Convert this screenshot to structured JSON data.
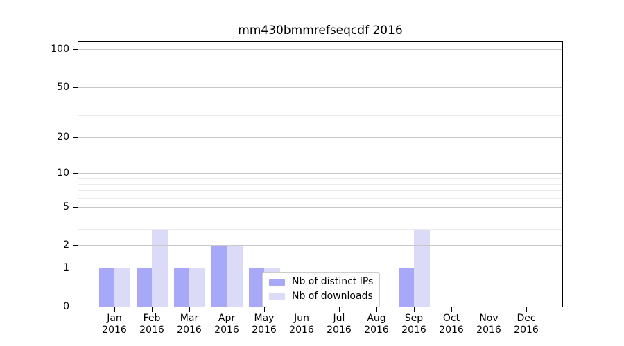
{
  "chart_data": {
    "type": "bar",
    "title": "mm430bmmrefseqcdf 2016",
    "x": {
      "categories": [
        {
          "month": "Jan",
          "year": "2016"
        },
        {
          "month": "Feb",
          "year": "2016"
        },
        {
          "month": "Mar",
          "year": "2016"
        },
        {
          "month": "Apr",
          "year": "2016"
        },
        {
          "month": "May",
          "year": "2016"
        },
        {
          "month": "Jun",
          "year": "2016"
        },
        {
          "month": "Jul",
          "year": "2016"
        },
        {
          "month": "Aug",
          "year": "2016"
        },
        {
          "month": "Sep",
          "year": "2016"
        },
        {
          "month": "Oct",
          "year": "2016"
        },
        {
          "month": "Nov",
          "year": "2016"
        },
        {
          "month": "Dec",
          "year": "2016"
        }
      ]
    },
    "y_axis": {
      "scale": "log1p",
      "max": 100,
      "ticks": [
        0,
        1,
        2,
        5,
        10,
        20,
        50,
        100
      ],
      "minor_ticks": [
        3,
        4,
        6,
        7,
        8,
        9,
        30,
        40,
        60,
        70,
        80,
        90
      ]
    },
    "series": [
      {
        "name": "Nb of distinct IPs",
        "color": "#a8a8f8",
        "values": [
          1,
          1,
          1,
          2,
          1,
          0,
          0,
          0,
          1,
          0,
          0,
          0
        ]
      },
      {
        "name": "Nb of downloads",
        "color": "#dbdbf8",
        "values": [
          1,
          3,
          1,
          2,
          1,
          0,
          0,
          0,
          3,
          0,
          0,
          0
        ]
      }
    ],
    "legend": {
      "position": "lower-center"
    },
    "colors": {
      "grid_major": "#c8c8c8",
      "grid_minor": "#eaeaea",
      "spine": "#000000",
      "legend_border": "#cccccc",
      "background": "#ffffff"
    }
  }
}
